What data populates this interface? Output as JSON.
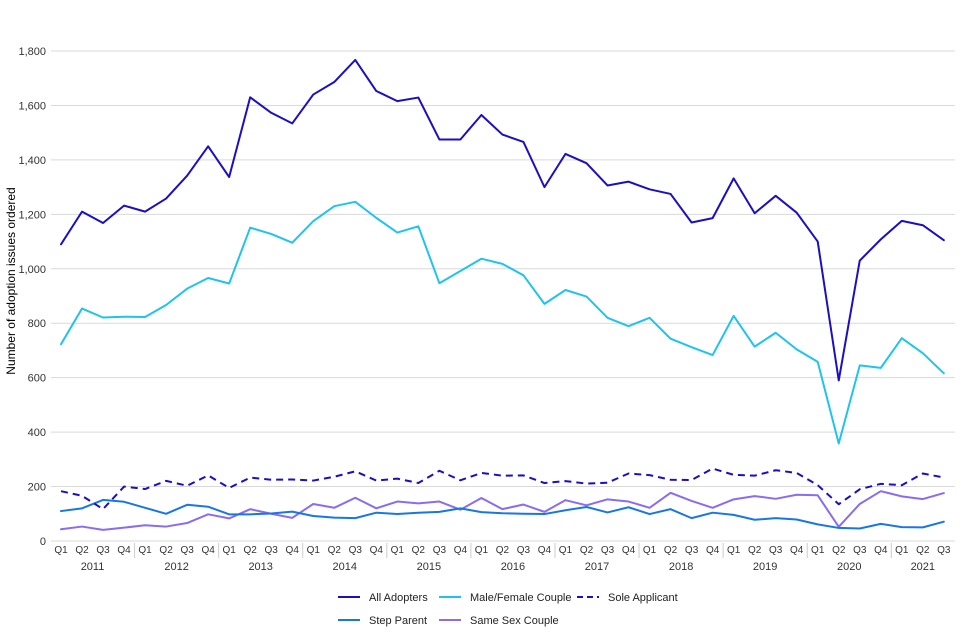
{
  "chart_data": {
    "type": "line",
    "title": "",
    "xlabel": "",
    "ylabel": "Number of adoption issues ordered",
    "ylim": [
      0,
      1900
    ],
    "yticks": [
      0,
      200,
      400,
      600,
      800,
      1000,
      1200,
      1400,
      1600,
      1800
    ],
    "ytick_labels": [
      "0",
      "200",
      "400",
      "600",
      "800",
      "1,000",
      "1,200",
      "1,400",
      "1,600",
      "1,800"
    ],
    "grid": true,
    "legend_position": "bottom",
    "quarters": [
      "Q1",
      "Q2",
      "Q3",
      "Q4",
      "Q1",
      "Q2",
      "Q3",
      "Q4",
      "Q1",
      "Q2",
      "Q3",
      "Q4",
      "Q1",
      "Q2",
      "Q3",
      "Q4",
      "Q1",
      "Q2",
      "Q3",
      "Q4",
      "Q1",
      "Q2",
      "Q3",
      "Q4",
      "Q1",
      "Q2",
      "Q3",
      "Q4",
      "Q1",
      "Q2",
      "Q3",
      "Q4",
      "Q1",
      "Q2",
      "Q3",
      "Q4",
      "Q1",
      "Q2",
      "Q3",
      "Q4",
      "Q1",
      "Q2",
      "Q3"
    ],
    "years": [
      "2011",
      "2012",
      "2013",
      "2014",
      "2015",
      "2016",
      "2017",
      "2018",
      "2019",
      "2020",
      "2021"
    ],
    "series": [
      {
        "name": "All Adopters",
        "color": "#1a0fc2",
        "dash": false,
        "values": [
          1090,
          1210,
          1168,
          1232,
          1210,
          1258,
          1342,
          1450,
          1337,
          1630,
          1573,
          1534,
          1640,
          1686,
          1767,
          1653,
          1616,
          1629,
          1475,
          1475,
          1565,
          1493,
          1466,
          1300,
          1422,
          1388,
          1306,
          1320,
          1292,
          1275,
          1170,
          1186,
          1332,
          1204,
          1268,
          1206,
          1100,
          590,
          1030,
          1108,
          1176,
          1160,
          1105
        ]
      },
      {
        "name": "Male/Female Couple",
        "color": "#1fc4ee",
        "dash": false,
        "values": [
          723,
          854,
          821,
          824,
          823,
          867,
          927,
          966,
          946,
          1151,
          1128,
          1096,
          1175,
          1230,
          1246,
          1187,
          1133,
          1156,
          947,
          992,
          1037,
          1018,
          976,
          871,
          922,
          898,
          820,
          789,
          820,
          743,
          712,
          683,
          827,
          714,
          765,
          704,
          658,
          358,
          645,
          636,
          745,
          690,
          616
        ]
      },
      {
        "name": "Sole Applicant",
        "color": "#1a0fc2",
        "dash": true,
        "values": [
          183,
          166,
          117,
          200,
          191,
          221,
          203,
          241,
          195,
          233,
          225,
          226,
          222,
          236,
          256,
          222,
          229,
          213,
          258,
          223,
          250,
          240,
          241,
          213,
          220,
          211,
          214,
          248,
          242,
          225,
          224,
          266,
          243,
          240,
          260,
          250,
          205,
          135,
          190,
          210,
          205,
          248,
          233
        ]
      },
      {
        "name": "Step Parent",
        "color": "#1877e0",
        "dash": false,
        "values": [
          110,
          120,
          151,
          144,
          122,
          100,
          133,
          126,
          98,
          98,
          101,
          108,
          92,
          86,
          84,
          104,
          99,
          104,
          107,
          120,
          106,
          102,
          100,
          99,
          113,
          125,
          105,
          124,
          99,
          117,
          84,
          104,
          96,
          78,
          84,
          79,
          61,
          48,
          46,
          63,
          51,
          50,
          71
        ]
      },
      {
        "name": "Same Sex Couple",
        "color": "#8a6cf0",
        "dash": false,
        "values": [
          43,
          53,
          41,
          49,
          58,
          53,
          66,
          98,
          83,
          117,
          100,
          85,
          136,
          122,
          159,
          120,
          145,
          138,
          145,
          115,
          158,
          117,
          134,
          107,
          150,
          131,
          153,
          145,
          122,
          177,
          147,
          122,
          153,
          165,
          155,
          170,
          168,
          52,
          136,
          183,
          164,
          154,
          176
        ]
      }
    ]
  }
}
